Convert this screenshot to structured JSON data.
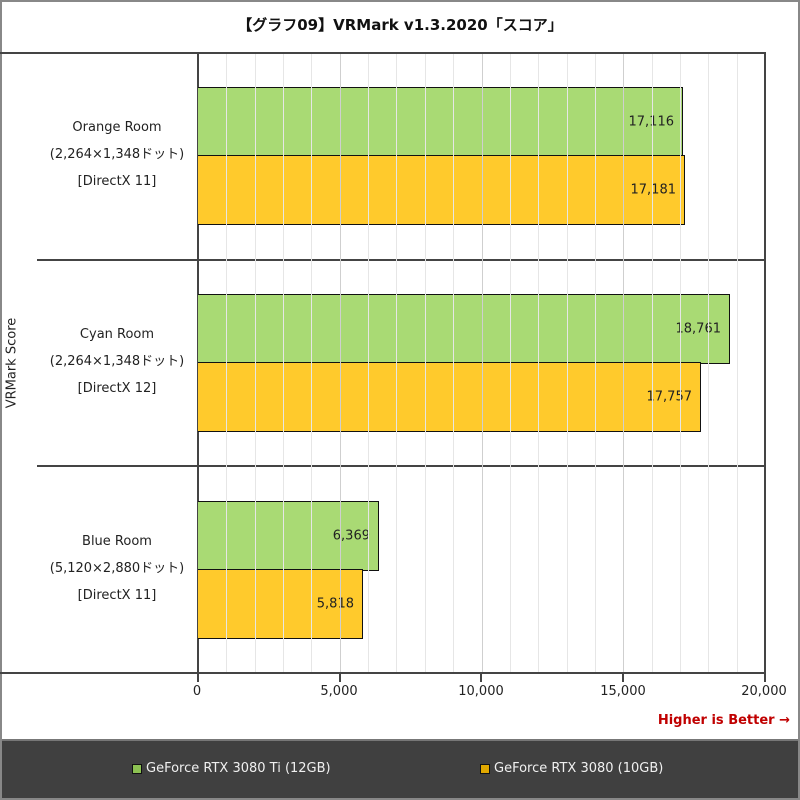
{
  "title": "【グラフ09】VRMark v1.3.2020「スコア」",
  "y_axis_label": "VRMark Score",
  "footnote": "Higher is Better →",
  "colors": {
    "series_1": "#A9DA74",
    "series_2": "#FFCA2C",
    "legend_bg": "#404040",
    "footnote": "#C00000"
  },
  "groups": [
    {
      "name": "Orange Room",
      "resolution": "(2,264×1,348ドット)",
      "api": "[DirectX 11]",
      "values": [
        {
          "value": 17116,
          "label": "17,116"
        },
        {
          "value": 17181,
          "label": "17,181"
        }
      ]
    },
    {
      "name": "Cyan Room",
      "resolution": "(2,264×1,348ドット)",
      "api": "[DirectX 12]",
      "values": [
        {
          "value": 18761,
          "label": "18,761"
        },
        {
          "value": 17757,
          "label": "17,757"
        }
      ]
    },
    {
      "name": "Blue Room",
      "resolution": "(5,120×2,880ドット)",
      "api": "[DirectX 11]",
      "values": [
        {
          "value": 6369,
          "label": "6,369"
        },
        {
          "value": 5818,
          "label": "5,818"
        }
      ]
    }
  ],
  "x_ticks": [
    "0",
    "5,000",
    "10,000",
    "15,000",
    "20,000"
  ],
  "legend": [
    {
      "label": "GeForce RTX 3080 Ti (12GB)",
      "color": "#8CC152"
    },
    {
      "label": "GeForce RTX 3080 (10GB)",
      "color": "#E0A800"
    }
  ],
  "chart_data": {
    "type": "bar",
    "orientation": "horizontal",
    "title": "【グラフ09】VRMark v1.3.2020「スコア」",
    "xlabel": "",
    "ylabel": "VRMark Score",
    "categories": [
      "Orange Room (2,264×1,348ドット) [DirectX 11]",
      "Cyan Room (2,264×1,348ドット) [DirectX 12]",
      "Blue Room (5,120×2,880ドット) [DirectX 11]"
    ],
    "series": [
      {
        "name": "GeForce RTX 3080 Ti (12GB)",
        "values": [
          17116,
          18761,
          6369
        ]
      },
      {
        "name": "GeForce RTX 3080 (10GB)",
        "values": [
          17181,
          17757,
          5818
        ]
      }
    ],
    "xlim": [
      0,
      20000
    ],
    "x_ticks": [
      0,
      5000,
      10000,
      15000,
      20000
    ],
    "grid": {
      "major_step": 5000,
      "minor_step": 1000
    },
    "legend_position": "bottom",
    "annotations": [
      "Higher is Better →"
    ]
  }
}
